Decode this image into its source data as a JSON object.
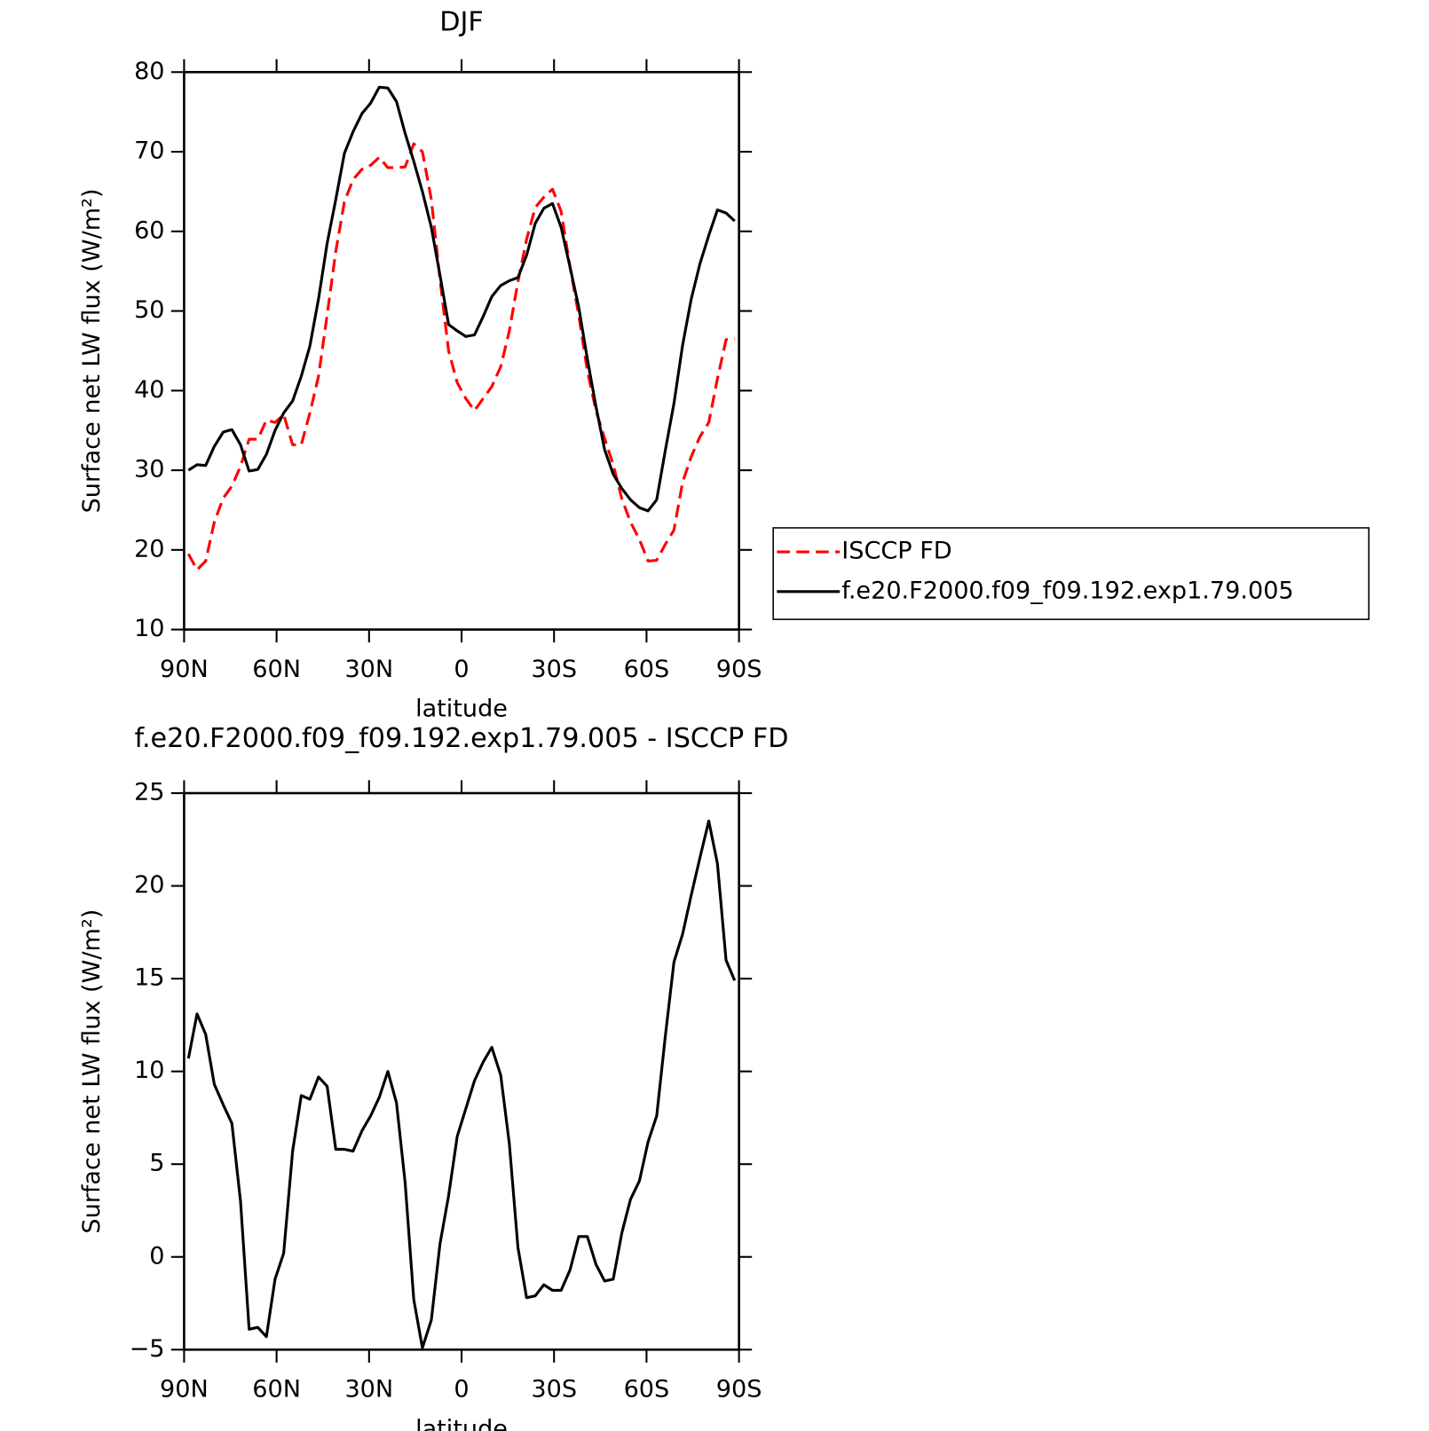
{
  "chart_data": [
    {
      "type": "line",
      "title": "DJF",
      "x_label": "latitude",
      "y_label": "Surface net LW flux (W/m²)",
      "x": [
        88.6,
        85.8,
        83.0,
        80.2,
        77.3,
        74.5,
        71.7,
        68.9,
        66.1,
        63.3,
        60.5,
        57.7,
        54.8,
        52.0,
        49.2,
        46.4,
        43.6,
        40.8,
        38.0,
        35.2,
        32.3,
        29.5,
        26.7,
        23.9,
        21.1,
        18.3,
        15.5,
        12.7,
        9.8,
        7.0,
        4.2,
        1.4,
        -1.4,
        -4.2,
        -7.0,
        -9.8,
        -12.7,
        -15.5,
        -18.3,
        -21.1,
        -23.9,
        -26.7,
        -29.5,
        -32.3,
        -35.2,
        -38.0,
        -40.8,
        -43.6,
        -46.4,
        -49.2,
        -52.0,
        -54.8,
        -57.7,
        -60.5,
        -63.3,
        -66.1,
        -68.9,
        -71.7,
        -74.5,
        -77.3,
        -80.2,
        -83.0,
        -85.8,
        -88.6
      ],
      "xlim": [
        90,
        -90
      ],
      "xticks": [
        {
          "value": 90,
          "label": "90N"
        },
        {
          "value": 60,
          "label": "60N"
        },
        {
          "value": 30,
          "label": "30N"
        },
        0,
        {
          "value": -30,
          "label": "30S"
        },
        {
          "value": -60,
          "label": "60S"
        },
        {
          "value": -90,
          "label": "90S"
        }
      ],
      "ylim": [
        10,
        80
      ],
      "yticks": [
        10,
        20,
        30,
        40,
        50,
        60,
        70,
        80
      ],
      "legend": "right",
      "series": [
        {
          "name": "ISCCP FD",
          "color": "#ff0000",
          "linestyle": "dashed",
          "values": [
            19.5,
            17.5,
            18.6,
            23.5,
            26.5,
            28,
            30.5,
            33.9,
            33.9,
            36.3,
            36,
            37,
            33.2,
            33.2,
            37.2,
            41.8,
            49.5,
            57.5,
            63.7,
            66.5,
            67.8,
            68.3,
            69.3,
            68,
            68,
            68.1,
            71,
            70,
            64,
            54,
            45,
            41,
            39,
            37.5,
            39,
            40.5,
            43,
            47.5,
            53.7,
            59,
            63,
            64.3,
            65.3,
            62.5,
            55.5,
            49.5,
            42.5,
            37.5,
            34,
            30.7,
            26.4,
            23.5,
            21.3,
            18.6,
            18.7,
            20.7,
            22.5,
            28.5,
            31.7,
            34.2,
            36,
            41.5,
            46.4,
            46.5
          ]
        },
        {
          "name": "f.e20.F2000.f09_f09.192.exp1.79.005",
          "color": "#000000",
          "linestyle": "solid",
          "values": [
            30,
            30.7,
            30.6,
            33,
            34.8,
            35.1,
            33.2,
            29.9,
            30.1,
            32,
            35,
            37.2,
            38.7,
            41.8,
            45.6,
            51.5,
            58.5,
            64,
            69.8,
            72.5,
            74.8,
            76.1,
            78.1,
            78,
            76.3,
            72.3,
            68.8,
            65,
            60.5,
            54.5,
            48.3,
            47.5,
            46.8,
            47,
            49.3,
            51.8,
            53.2,
            53.8,
            54.2,
            57,
            61,
            62.9,
            63.5,
            60.5,
            55.5,
            50.5,
            44,
            38,
            32.6,
            29.5,
            27.7,
            26.3,
            25.3,
            24.9,
            26.3,
            32.5,
            38.4,
            45.7,
            51.5,
            55.9,
            59.5,
            62.7,
            62.3,
            61.3
          ]
        }
      ]
    },
    {
      "type": "line",
      "title": "f.e20.F2000.f09_f09.192.exp1.79.005 - ISCCP FD",
      "x_label": "latitude",
      "y_label": "Surface net LW flux (W/m²)",
      "x": [
        88.6,
        85.8,
        83.0,
        80.2,
        77.3,
        74.5,
        71.7,
        68.9,
        66.1,
        63.3,
        60.5,
        57.7,
        54.8,
        52.0,
        49.2,
        46.4,
        43.6,
        40.8,
        38.0,
        35.2,
        32.3,
        29.5,
        26.7,
        23.9,
        21.1,
        18.3,
        15.5,
        12.7,
        9.8,
        7.0,
        4.2,
        1.4,
        -1.4,
        -4.2,
        -7.0,
        -9.8,
        -12.7,
        -15.5,
        -18.3,
        -21.1,
        -23.9,
        -26.7,
        -29.5,
        -32.3,
        -35.2,
        -38.0,
        -40.8,
        -43.6,
        -46.4,
        -49.2,
        -52.0,
        -54.8,
        -57.7,
        -60.5,
        -63.3,
        -66.1,
        -68.9,
        -71.7,
        -74.5,
        -77.3,
        -80.2,
        -83.0,
        -85.8,
        -88.6
      ],
      "xlim": [
        90,
        -90
      ],
      "xticks": [
        {
          "value": 90,
          "label": "90N"
        },
        {
          "value": 60,
          "label": "60N"
        },
        {
          "value": 30,
          "label": "30N"
        },
        0,
        {
          "value": -30,
          "label": "30S"
        },
        {
          "value": -60,
          "label": "60S"
        },
        {
          "value": -90,
          "label": "90S"
        }
      ],
      "ylim": [
        -5,
        25
      ],
      "yticks": [
        {
          "value": -5,
          "label": "−5"
        },
        0,
        5,
        10,
        15,
        20,
        25
      ],
      "series": [
        {
          "color": "#000000",
          "linestyle": "solid",
          "values": [
            10.7,
            13.1,
            12,
            9.3,
            8.2,
            7.2,
            3,
            -3.9,
            -3.8,
            -4.3,
            -1.2,
            0.2,
            5.7,
            8.7,
            8.5,
            9.7,
            9.2,
            5.8,
            5.8,
            5.7,
            6.8,
            7.6,
            8.6,
            10,
            8.3,
            4,
            -2.3,
            -4.9,
            -3.4,
            0.7,
            3.3,
            6.5,
            8,
            9.5,
            10.5,
            11.3,
            9.8,
            6.1,
            0.5,
            -2.2,
            -2.1,
            -1.5,
            -1.8,
            -1.8,
            -0.7,
            1.1,
            1.1,
            -0.4,
            -1.3,
            -1.2,
            1.3,
            3.1,
            4.1,
            6.2,
            7.6,
            11.9,
            15.9,
            17.4,
            19.5,
            21.5,
            23.5,
            21.2,
            16,
            14.9
          ]
        }
      ]
    }
  ]
}
